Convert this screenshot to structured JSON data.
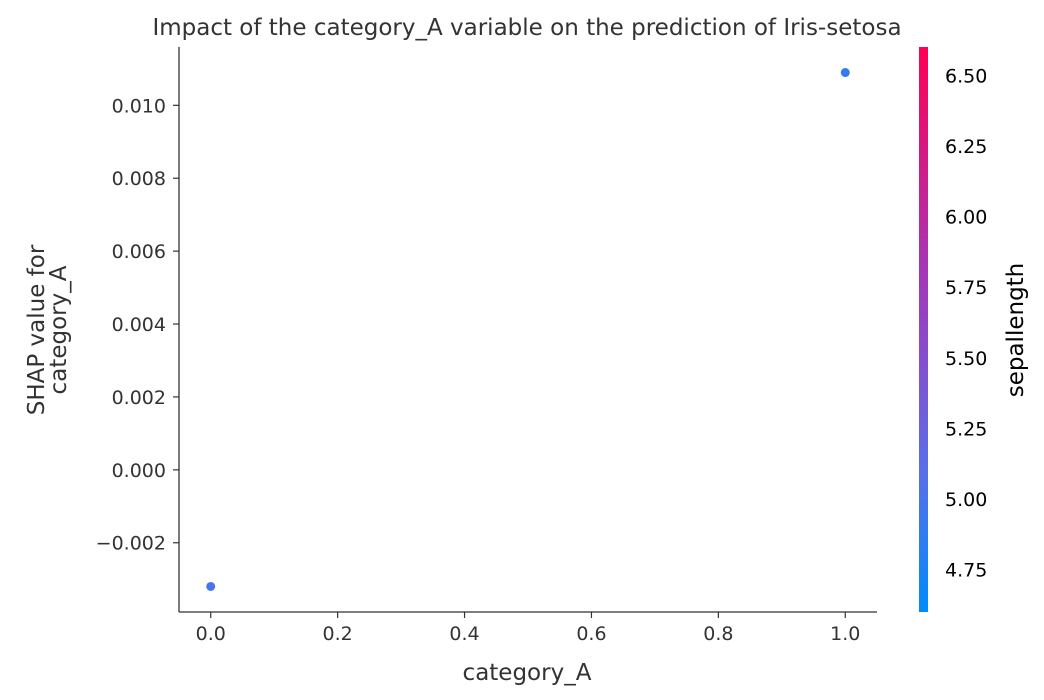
{
  "chart_data": {
    "type": "scatter",
    "title": "Impact of the category_A variable on the prediction of Iris-setosa",
    "xlabel": "category_A",
    "ylabel_lines": [
      "SHAP value for",
      "category_A"
    ],
    "xlim": [
      -0.05,
      1.05
    ],
    "ylim": [
      -0.0039,
      0.0116
    ],
    "x_ticks": [
      0.0,
      0.2,
      0.4,
      0.6,
      0.8,
      1.0
    ],
    "x_tick_labels": [
      "0.0",
      "0.2",
      "0.4",
      "0.6",
      "0.8",
      "1.0"
    ],
    "y_ticks": [
      -0.002,
      0.0,
      0.002,
      0.004,
      0.006,
      0.008,
      0.01
    ],
    "y_tick_labels": [
      "−0.002",
      "0.000",
      "0.002",
      "0.004",
      "0.006",
      "0.008",
      "0.010"
    ],
    "grid": false,
    "points": [
      {
        "x": 0.0,
        "y": -0.0032,
        "color_value": 5.0
      },
      {
        "x": 1.0,
        "y": 0.0109,
        "color_value": 4.9
      }
    ],
    "colorbar": {
      "label": "sepallength",
      "range": [
        4.6,
        6.6
      ],
      "ticks": [
        4.75,
        5.0,
        5.25,
        5.5,
        5.75,
        6.0,
        6.25,
        6.5
      ],
      "tick_labels": [
        "4.75",
        "5.00",
        "5.25",
        "5.50",
        "5.75",
        "6.00",
        "6.25",
        "6.50"
      ],
      "colors": [
        "#008bfb",
        "#ff0052"
      ]
    }
  }
}
